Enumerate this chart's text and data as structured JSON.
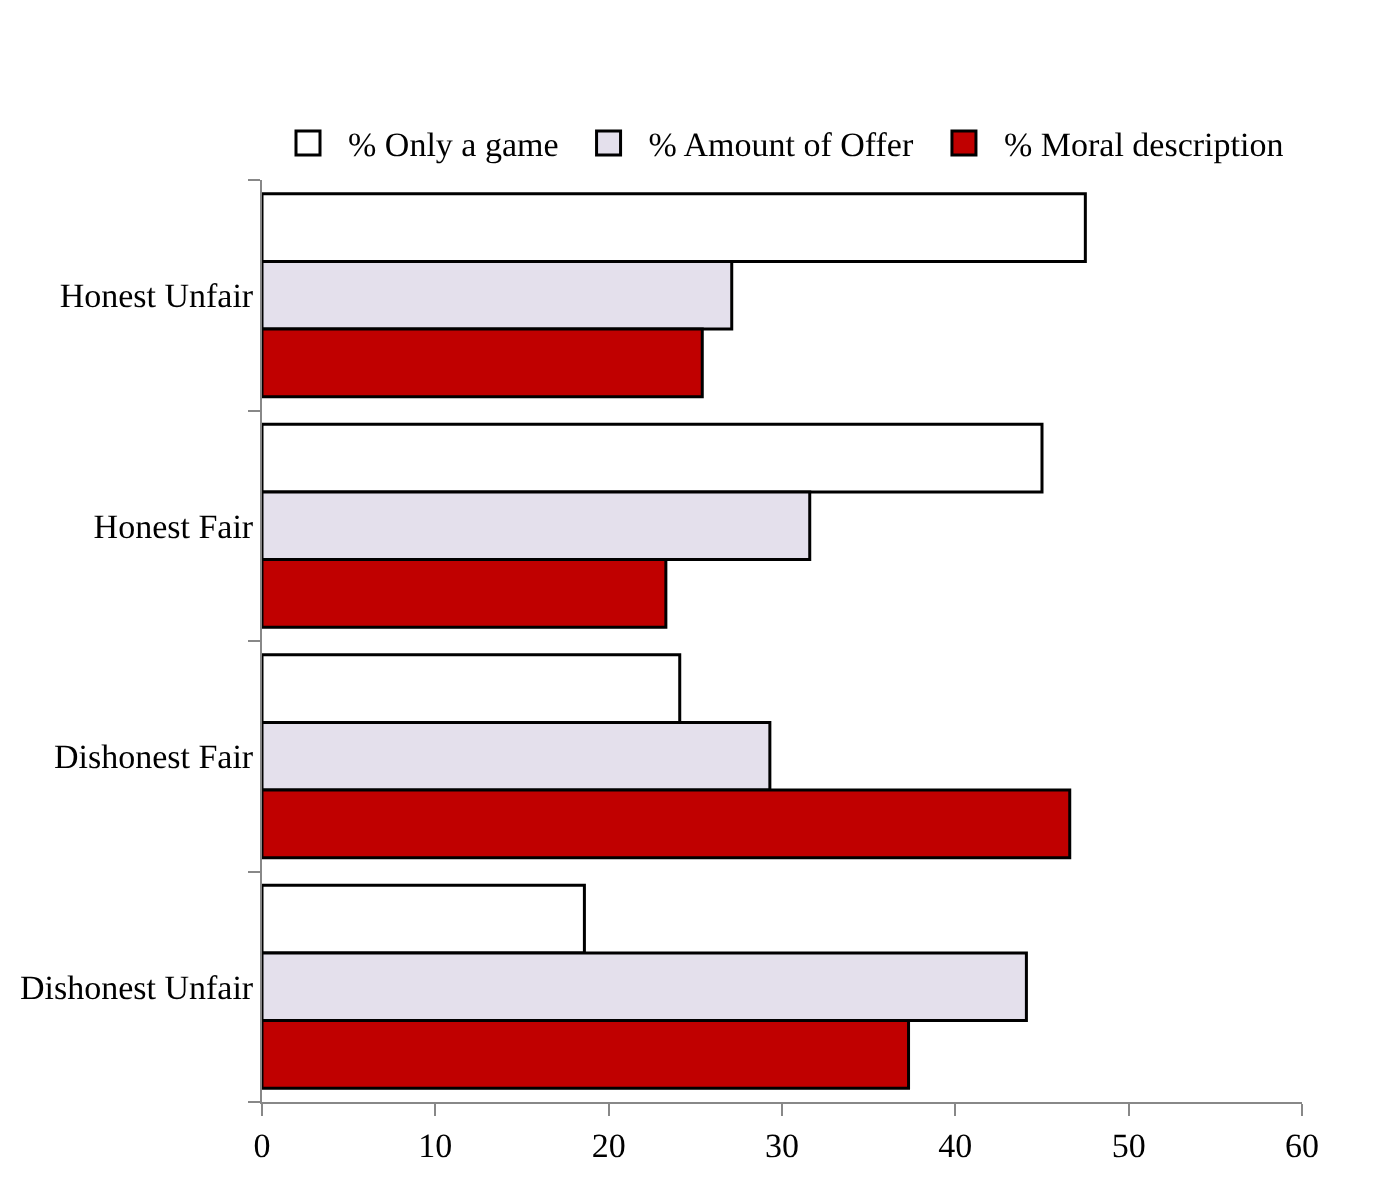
{
  "chart_data": {
    "type": "bar",
    "orientation": "horizontal",
    "categories": [
      "Honest Unfair",
      "Honest Fair",
      "Dishonest Fair",
      "Dishonest Unfair"
    ],
    "series": [
      {
        "name": "% Only a game",
        "color": "#ffffff",
        "values": [
          47.5,
          45.0,
          24.1,
          18.6
        ]
      },
      {
        "name": "% Amount of Offer",
        "color": "#e4e0ec",
        "values": [
          27.1,
          31.6,
          29.3,
          44.1
        ]
      },
      {
        "name": "% Moral description",
        "color": "#c00000",
        "values": [
          25.4,
          23.3,
          46.6,
          37.3
        ]
      }
    ],
    "xlim": [
      0,
      60
    ],
    "xticks": [
      0,
      10,
      20,
      30,
      40,
      50,
      60
    ],
    "legend": "top"
  }
}
